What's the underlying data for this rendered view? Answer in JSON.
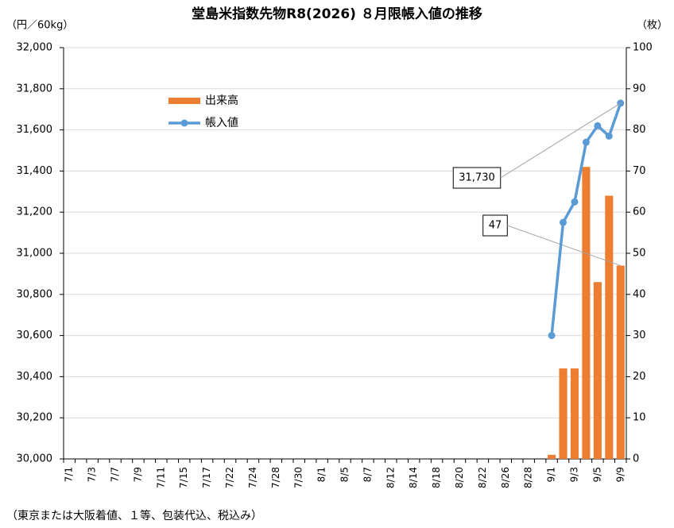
{
  "chart_data": {
    "type": "bar_line",
    "title": "堂島米指数先物R8(2026) ８月限帳入値の推移",
    "y_label": "（円／60kg）",
    "y2_label": "（枚）",
    "footnote": "（東京または大阪着値、１等、包装代込、税込み）",
    "categories": [
      "7/1",
      null,
      "7/3",
      null,
      "7/7",
      null,
      "7/9",
      null,
      "7/11",
      null,
      "7/15",
      null,
      "7/17",
      null,
      "7/22",
      null,
      "7/24",
      null,
      "7/28",
      null,
      "7/30",
      null,
      "8/1",
      null,
      "8/5",
      null,
      "8/7",
      null,
      "8/12",
      null,
      "8/14",
      null,
      "8/18",
      null,
      "8/20",
      null,
      "8/22",
      null,
      "8/26",
      null,
      "8/28",
      null,
      "9/1",
      null,
      "9/3",
      null,
      "9/5",
      null,
      "9/9"
    ],
    "series": [
      {
        "name": "出来高",
        "type": "bar",
        "axis": "y2",
        "color": "#ed7d31",
        "values": [
          null,
          null,
          null,
          null,
          null,
          null,
          null,
          null,
          null,
          null,
          null,
          null,
          null,
          null,
          null,
          null,
          null,
          null,
          null,
          null,
          null,
          null,
          null,
          null,
          null,
          null,
          null,
          null,
          null,
          null,
          null,
          null,
          null,
          null,
          null,
          null,
          null,
          null,
          null,
          null,
          null,
          null,
          1,
          22,
          22,
          71,
          43,
          64,
          47
        ],
        "annotated": [
          48
        ]
      },
      {
        "name": "帳入値",
        "type": "line",
        "axis": "y",
        "color": "#5b9bd5",
        "values": [
          null,
          null,
          null,
          null,
          null,
          null,
          null,
          null,
          null,
          null,
          null,
          null,
          null,
          null,
          null,
          null,
          null,
          null,
          null,
          null,
          null,
          null,
          null,
          null,
          null,
          null,
          null,
          null,
          null,
          null,
          null,
          null,
          null,
          null,
          null,
          null,
          null,
          null,
          null,
          null,
          null,
          null,
          30600,
          31150,
          31250,
          31540,
          31620,
          31570,
          31730
        ],
        "value_labels": [
          null,
          null,
          null,
          null,
          null,
          null,
          null,
          null,
          null,
          null,
          null,
          null,
          null,
          null,
          null,
          null,
          null,
          null,
          null,
          null,
          null,
          null,
          null,
          null,
          null,
          null,
          null,
          null,
          null,
          null,
          null,
          null,
          null,
          null,
          null,
          null,
          null,
          null,
          null,
          null,
          null,
          null,
          null,
          null,
          null,
          null,
          null,
          null,
          "31,730"
        ]
      }
    ],
    "ylim": [
      30000,
      32000
    ],
    "yticks": [
      {
        "value": 30000,
        "label": "30,000"
      },
      {
        "value": 30200,
        "label": "30,200"
      },
      {
        "value": 30400,
        "label": "30,400"
      },
      {
        "value": 30600,
        "label": "30,600"
      },
      {
        "value": 30800,
        "label": "30,800"
      },
      {
        "value": 31000,
        "label": "31,000"
      },
      {
        "value": 31200,
        "label": "31,200"
      },
      {
        "value": 31400,
        "label": "31,400"
      },
      {
        "value": 31600,
        "label": "31,600"
      },
      {
        "value": 31800,
        "label": "31,800"
      },
      {
        "value": 32000,
        "label": "32,000"
      }
    ],
    "y2lim": [
      0,
      100
    ],
    "y2ticks": [
      0,
      10,
      20,
      30,
      40,
      50,
      60,
      70,
      80,
      90,
      100
    ],
    "grid": true,
    "legend": "upper-left"
  }
}
